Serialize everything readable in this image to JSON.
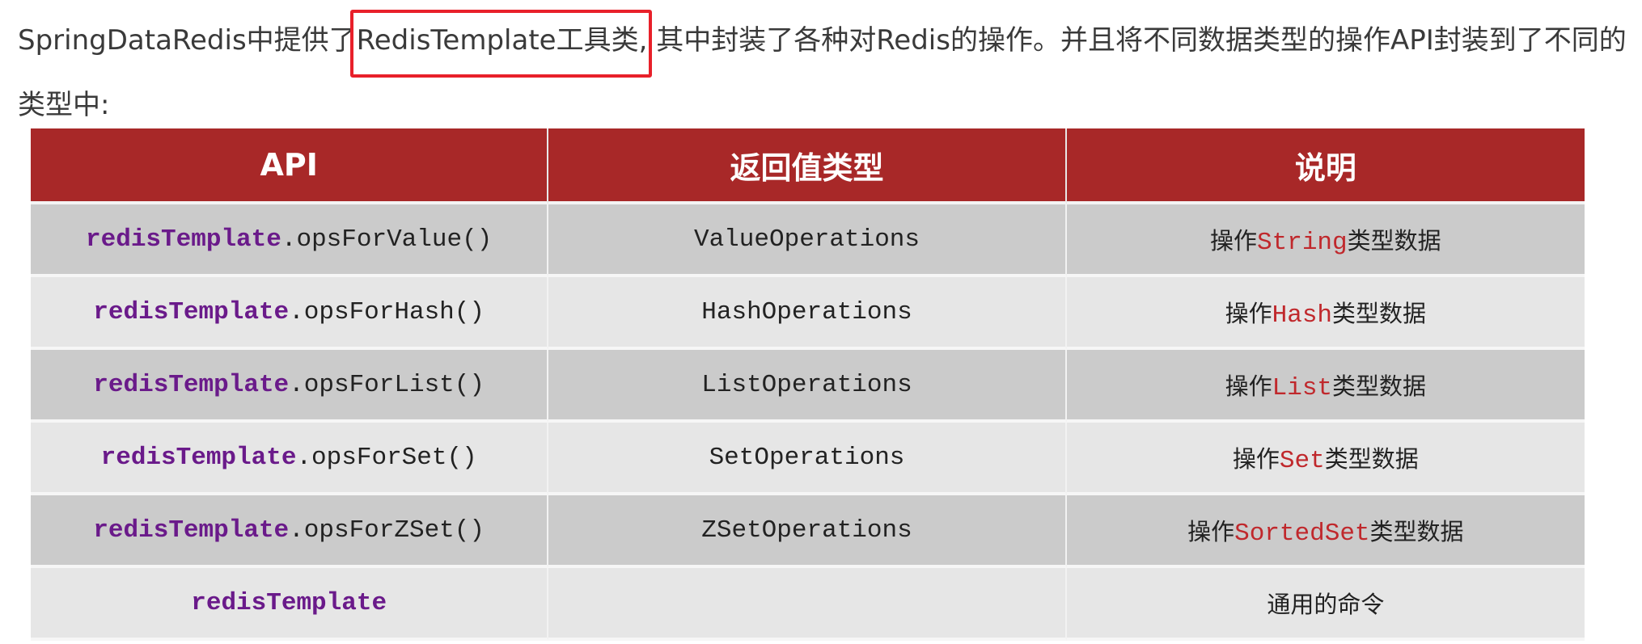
{
  "intro": {
    "before": "SpringDataRedis中提供了",
    "highlight": "RedisTemplate工具类,",
    "after": " 其中封装了各种对Redis的操作。并且将不同数据类型的操作API封装到了不同的类型中:"
  },
  "highlight_color": "#e8202a",
  "table": {
    "header_color": "#a82828",
    "headers": [
      "API",
      "返回值类型",
      "说明"
    ],
    "rows": [
      {
        "obj": "redisTemplate",
        "method": ".opsForValue()",
        "return": "ValueOperations",
        "pre": "操作",
        "type": "String",
        "post": "类型数据"
      },
      {
        "obj": "redisTemplate",
        "method": ".opsForHash()",
        "return": "HashOperations",
        "pre": "操作",
        "type": "Hash",
        "post": "类型数据"
      },
      {
        "obj": "redisTemplate",
        "method": ".opsForList()",
        "return": "ListOperations",
        "pre": "操作",
        "type": "List",
        "post": "类型数据"
      },
      {
        "obj": "redisTemplate",
        "method": ".opsForSet()",
        "return": "SetOperations",
        "pre": "操作",
        "type": "Set",
        "post": "类型数据"
      },
      {
        "obj": "redisTemplate",
        "method": ".opsForZSet()",
        "return": "ZSetOperations",
        "pre": "操作",
        "type": "SortedSet",
        "post": "类型数据"
      },
      {
        "obj": "redisTemplate",
        "method": "",
        "return": "",
        "pre": "通用的命令",
        "type": "",
        "post": ""
      }
    ]
  }
}
